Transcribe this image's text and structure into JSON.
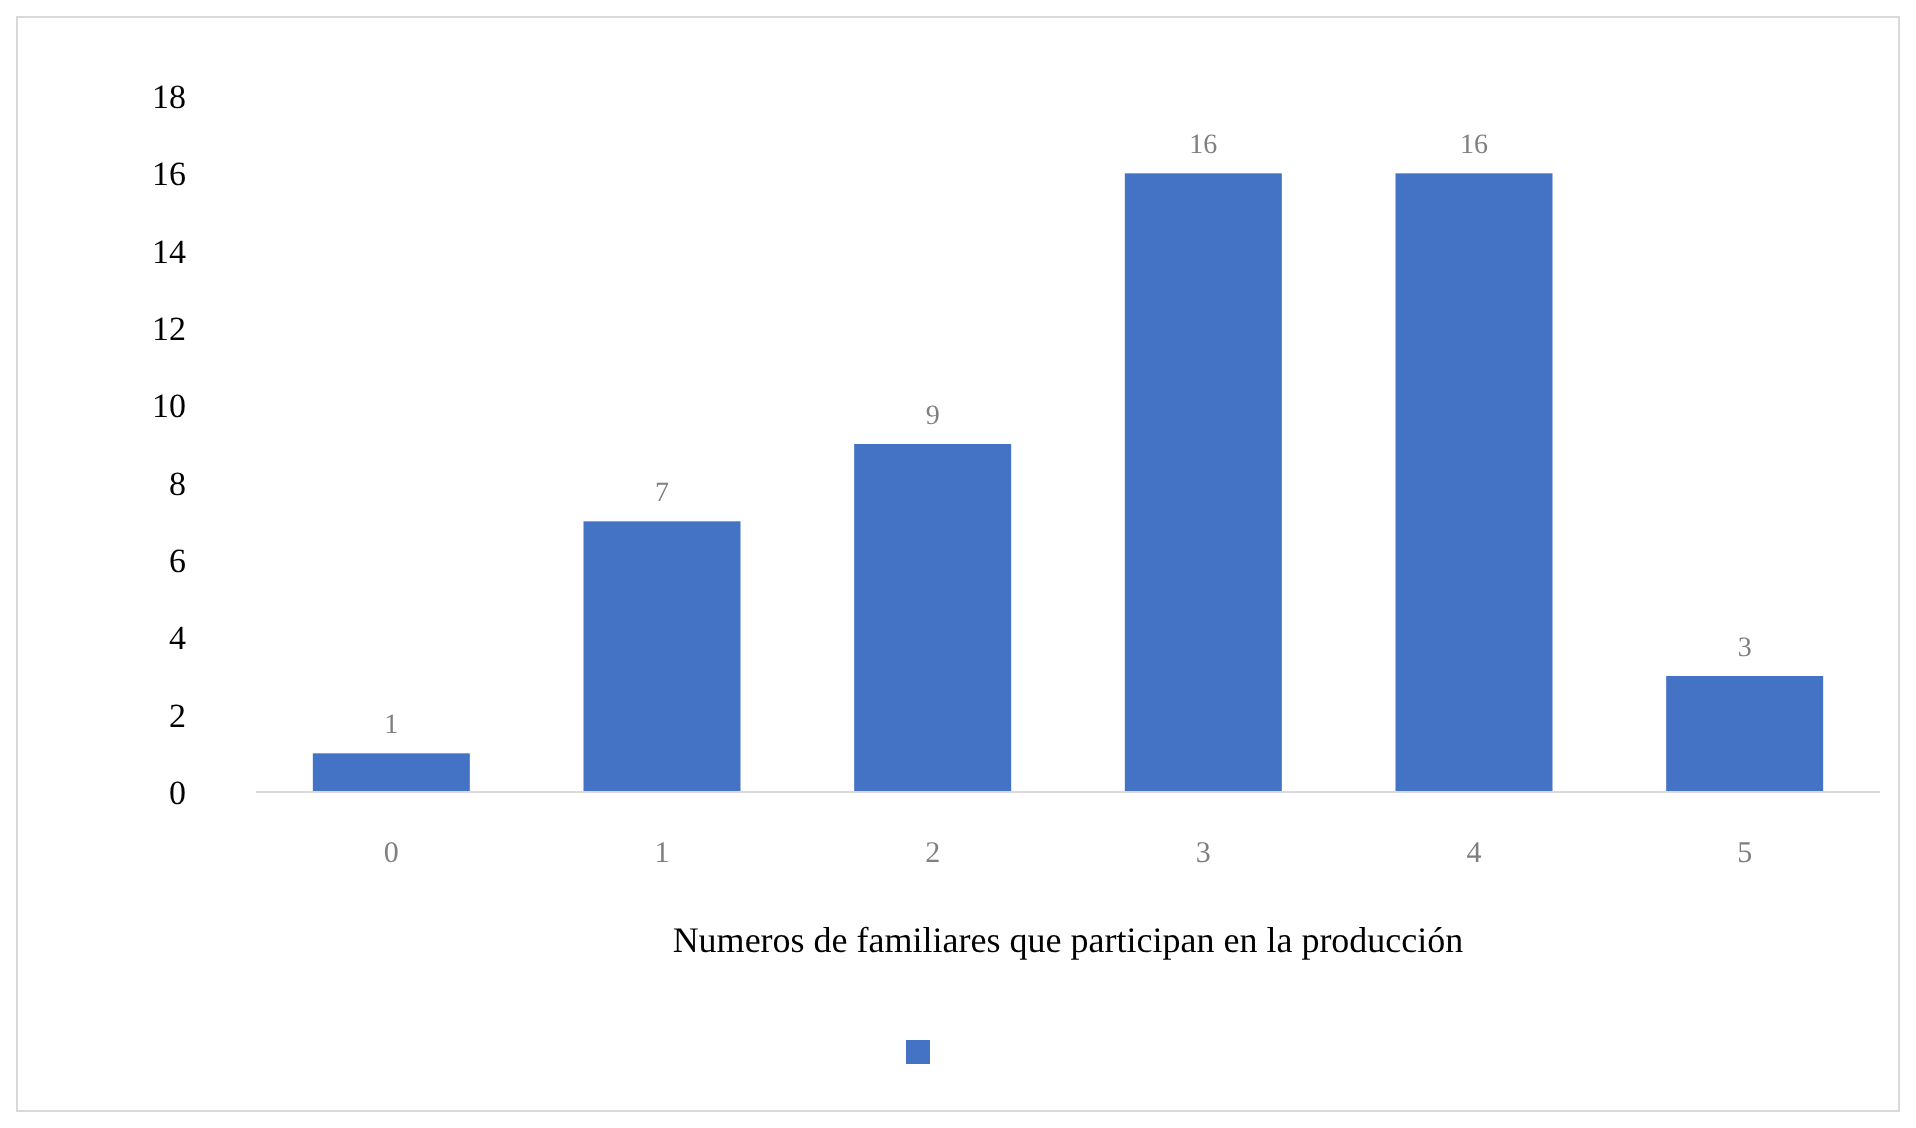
{
  "chart_data": {
    "type": "bar",
    "xlabel": "Numeros de familiares que participan en la producción",
    "categories": [
      "0",
      "1",
      "2",
      "3",
      "4",
      "5"
    ],
    "series": [
      {
        "color": "#4472c4",
        "values": [
          1,
          7,
          9,
          16,
          16,
          3
        ]
      }
    ],
    "ylim": [
      0,
      18
    ],
    "yticks": [
      0,
      2,
      4,
      6,
      8,
      10,
      12,
      14,
      16,
      18
    ],
    "data_labels": true,
    "grid": false
  }
}
